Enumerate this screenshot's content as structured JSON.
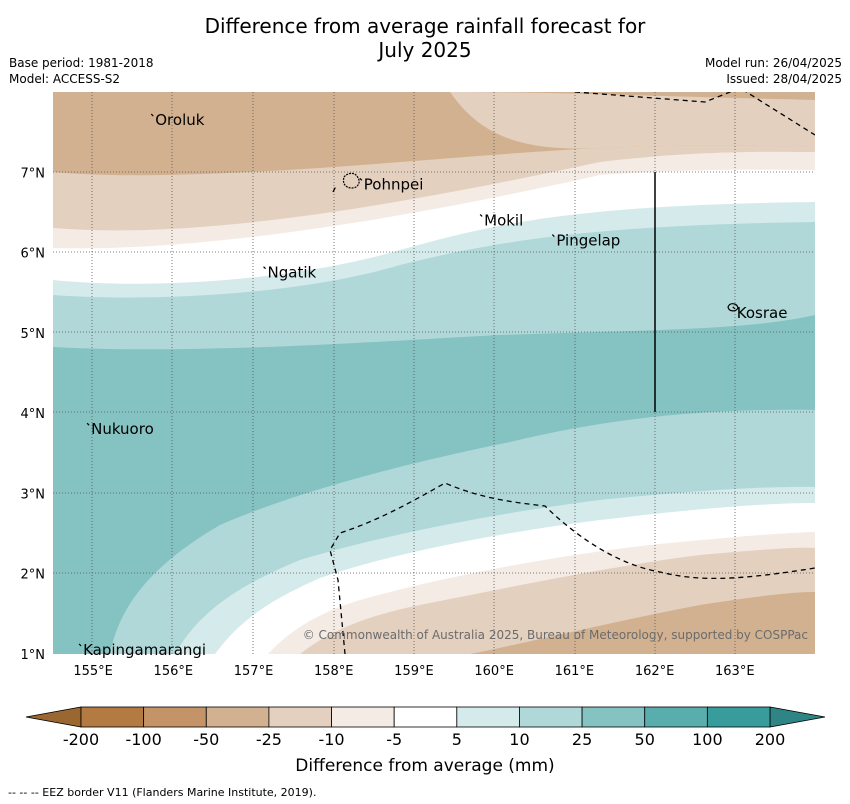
{
  "title": "Difference from average rainfall forecast for July 2025",
  "title_line1": "Difference from average rainfall forecast for",
  "title_line2": "July 2025",
  "meta": {
    "base_period": "Base period: 1981-2018",
    "model": "Model: ACCESS-S2",
    "model_run": "Model run: 26/04/2025",
    "issued": "Issued: 28/04/2025"
  },
  "map": {
    "x_ticks": [
      "155°E",
      "156°E",
      "157°E",
      "158°E",
      "159°E",
      "160°E",
      "161°E",
      "162°E",
      "163°E"
    ],
    "y_ticks": [
      "7°N",
      "6°N",
      "5°N",
      "4°N",
      "3°N",
      "2°N",
      "1°N"
    ],
    "places": [
      {
        "name": "Oroluk",
        "lon": 155.75,
        "lat": 7.65
      },
      {
        "name": "Pohnpei",
        "lon": 158.35,
        "lat": 6.85
      },
      {
        "name": "Mokil",
        "lon": 159.85,
        "lat": 6.4
      },
      {
        "name": "Pingelap",
        "lon": 160.75,
        "lat": 6.15
      },
      {
        "name": "Ngatik",
        "lon": 157.15,
        "lat": 5.75
      },
      {
        "name": "Kosrae",
        "lon": 163.0,
        "lat": 5.25
      },
      {
        "name": "Nukuoro",
        "lon": 154.95,
        "lat": 3.8
      },
      {
        "name": "Kapingamarangi",
        "lon": 154.85,
        "lat": 1.05
      }
    ],
    "copyright": "© Commonwealth of Australia 2025, Bureau of Meteorology, supported by COSPPac"
  },
  "colorbar": {
    "labels": [
      "-200",
      "-100",
      "-50",
      "-25",
      "-10",
      "-5",
      "5",
      "10",
      "25",
      "50",
      "100",
      "200"
    ],
    "colors": [
      "#b37a42",
      "#c49468",
      "#d2b190",
      "#e4d0bf",
      "#f4ebe4",
      "#ffffff",
      "#d5eaea",
      "#b0d8d8",
      "#85c2c2",
      "#5aadad",
      "#389c9c"
    ],
    "under_color": "#9a6730",
    "over_color": "#2f8585",
    "title": "Difference from average (mm)"
  },
  "footer": "--  --  -- EEZ border V11 (Flanders Marine Institute, 2019)."
}
